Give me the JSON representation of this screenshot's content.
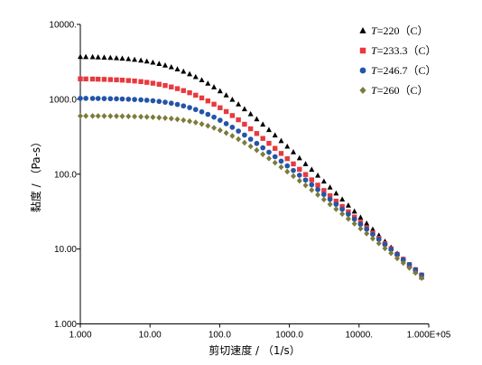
{
  "chart_data": {
    "type": "scatter",
    "title": "",
    "xlabel": "剪切速度 / （1/s）",
    "ylabel": "黏度 / （Pa-s）",
    "x_scale": "log",
    "y_scale": "log",
    "xlim": [
      1,
      100000
    ],
    "ylim": [
      1,
      10000
    ],
    "x_ticks": [
      1,
      10,
      100,
      1000,
      10000,
      100000
    ],
    "x_tick_labels": [
      "1.000",
      "10.00",
      "100.0",
      "1000.0",
      "10000.",
      "1.000E+05"
    ],
    "y_ticks": [
      1,
      10,
      100,
      1000,
      10000
    ],
    "y_tick_labels": [
      "1.000",
      "10.00",
      "100.0",
      "1000.0",
      "10000."
    ],
    "grid": false,
    "legend_position": "top-right",
    "series": [
      {
        "name": "T=220（C）",
        "name_var": "T",
        "name_rest": "=220（C）",
        "color": "#000000",
        "marker": "triangle",
        "x": [
          1.0,
          1.2,
          1.5,
          1.8,
          2.2,
          2.7,
          3.3,
          4.0,
          4.9,
          6.0,
          7.4,
          9.0,
          11.0,
          13.5,
          16.5,
          20.2,
          24.7,
          30.2,
          37.0,
          45.2,
          55.3,
          67.7,
          82.8,
          101.3,
          124.0,
          151.7,
          185.6,
          227.1,
          277.9,
          340.0,
          416.0,
          509.0,
          622.8,
          762.0,
          932.4,
          1141.0,
          1396.0,
          1708.0,
          2090.0,
          2557.0,
          3129.0,
          3829.0,
          4685.0,
          5732.0,
          7014.0,
          8582.0,
          10500.0,
          12850.0,
          15720.0,
          19240.0,
          23540.0,
          28800.0,
          35240.0,
          43120.0,
          52760.0,
          64560.0,
          79000.0
        ],
        "y": [
          3699,
          3685,
          3668,
          3647,
          3622,
          3590,
          3552,
          3508,
          3452,
          3385,
          3306,
          3212,
          3101,
          2980,
          2839,
          2690,
          2525,
          2352,
          2174,
          1988,
          1805,
          1625,
          1452,
          1287,
          1133,
          989,
          858,
          741,
          636,
          543,
          462,
          391,
          331,
          278,
          234,
          197,
          164,
          137,
          115,
          96.0,
          80.0,
          66.6,
          55.4,
          46.1,
          38.3,
          31.8,
          26.4,
          22.0,
          18.3,
          15.2,
          12.6,
          10.5,
          8.7,
          7.3,
          6.1,
          5.0,
          4.2
        ]
      },
      {
        "name": "T=233.3（C）",
        "name_var": "T",
        "name_rest": "=233.3（C）",
        "color": "#e8393e",
        "marker": "square",
        "x": [
          1.0,
          1.2,
          1.5,
          1.8,
          2.2,
          2.7,
          3.3,
          4.0,
          4.9,
          6.0,
          7.4,
          9.0,
          11.0,
          13.5,
          16.5,
          20.2,
          24.7,
          30.2,
          37.0,
          45.2,
          55.3,
          67.7,
          82.8,
          101.3,
          124.0,
          151.7,
          185.6,
          227.1,
          277.9,
          340.0,
          416.0,
          509.0,
          622.8,
          762.0,
          932.4,
          1141.0,
          1396.0,
          1708.0,
          2090.0,
          2557.0,
          3129.0,
          3829.0,
          4685.0,
          5732.0,
          7014.0,
          8582.0,
          10500.0,
          12850.0,
          15720.0,
          19240.0,
          23540.0,
          28800.0,
          35240.0,
          43120.0,
          52760.0,
          64560.0,
          79000.0
        ],
        "y": [
          1873,
          1868,
          1862,
          1854,
          1845,
          1833,
          1818,
          1801,
          1779,
          1753,
          1721,
          1683,
          1638,
          1586,
          1526,
          1459,
          1386,
          1307,
          1222,
          1133,
          1042,
          950,
          859,
          770,
          685,
          606,
          532,
          464,
          403,
          349,
          300,
          258,
          221,
          189,
          161,
          137,
          116,
          98.8,
          84.0,
          71.3,
          60.5,
          51.4,
          43.6,
          37.0,
          31.4,
          26.7,
          22.7,
          19.3,
          16.4,
          13.9,
          11.8,
          10.1,
          8.5,
          7.3,
          6.2,
          5.3,
          4.5
        ]
      },
      {
        "name": "T=246.7（C）",
        "name_var": "T",
        "name_rest": "=246.7（C）",
        "color": "#2355a8",
        "marker": "circle",
        "x": [
          1.0,
          1.2,
          1.5,
          1.8,
          2.2,
          2.7,
          3.3,
          4.0,
          4.9,
          6.0,
          7.4,
          9.0,
          11.0,
          13.5,
          16.5,
          20.2,
          24.7,
          30.2,
          37.0,
          45.2,
          55.3,
          67.7,
          82.8,
          101.3,
          124.0,
          151.7,
          185.6,
          227.1,
          277.9,
          340.0,
          416.0,
          509.0,
          622.8,
          762.0,
          932.4,
          1141.0,
          1396.0,
          1708.0,
          2090.0,
          2557.0,
          3129.0,
          3829.0,
          4685.0,
          5732.0,
          7014.0,
          8582.0,
          10500.0,
          12850.0,
          15720.0,
          19240.0,
          23540.0,
          28800.0,
          35240.0,
          43120.0,
          52760.0,
          64560.0,
          79000.0
        ],
        "y": [
          1029,
          1028,
          1026,
          1024,
          1021,
          1018,
          1014,
          1009,
          1002,
          994,
          984,
          971,
          955,
          936,
          913,
          885,
          853,
          816,
          775,
          729,
          680,
          629,
          577,
          524,
          472,
          423,
          376,
          333,
          293,
          257,
          225,
          196,
          171,
          149,
          129,
          112,
          96.8,
          83.6,
          72.1,
          62.2,
          53.6,
          46.1,
          39.6,
          34.0,
          29.2,
          25.0,
          21.4,
          18.4,
          15.7,
          13.5,
          11.5,
          9.9,
          8.5,
          7.2,
          6.2,
          5.3,
          4.5
        ]
      },
      {
        "name": "T=260（C）",
        "name_var": "T",
        "name_rest": "=260（C）",
        "color": "#7b7c3a",
        "marker": "diamond",
        "x": [
          1.0,
          1.2,
          1.5,
          1.8,
          2.2,
          2.7,
          3.3,
          4.0,
          4.9,
          6.0,
          7.4,
          9.0,
          11.0,
          13.5,
          16.5,
          20.2,
          24.7,
          30.2,
          37.0,
          45.2,
          55.3,
          67.7,
          82.8,
          101.3,
          124.0,
          151.7,
          185.6,
          227.1,
          277.9,
          340.0,
          416.0,
          509.0,
          622.8,
          762.0,
          932.4,
          1141.0,
          1396.0,
          1708.0,
          2090.0,
          2557.0,
          3129.0,
          3829.0,
          4685.0,
          5732.0,
          7014.0,
          8582.0,
          10500.0,
          12850.0,
          15720.0,
          19240.0,
          23540.0,
          28800.0,
          35240.0,
          43120.0,
          52760.0,
          64560.0,
          79000.0
        ],
        "y": [
          599,
          599,
          598,
          598,
          597,
          596,
          595,
          593,
          591,
          588,
          585,
          581,
          576,
          569,
          561,
          552,
          540,
          526,
          509,
          490,
          467,
          442,
          415,
          385,
          355,
          324,
          293,
          263,
          235,
          209,
          184,
          162,
          142,
          124,
          108,
          94.0,
          81.6,
          70.8,
          61.3,
          53.0,
          45.8,
          39.5,
          34.1,
          29.4,
          25.3,
          21.8,
          18.7,
          16.1,
          13.8,
          11.9,
          10.2,
          8.8,
          7.5,
          6.5,
          5.6,
          4.8,
          4.1
        ]
      }
    ]
  }
}
